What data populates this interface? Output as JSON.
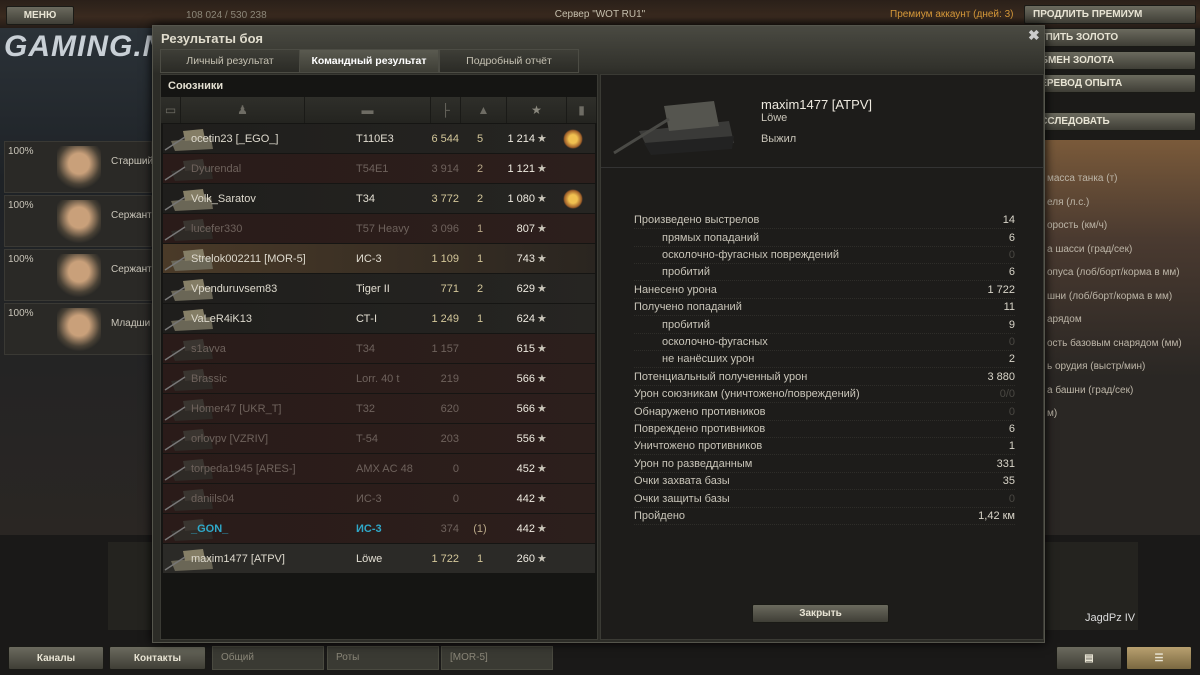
{
  "topbar": {
    "menu_label": "МЕНЮ",
    "gold_xp": "108 024 / 530 238",
    "server": "Сервер \"WOT RU1\"",
    "premium": "Премиум аккаунт (дней:  3)",
    "extend_premium": "ПРОДЛИТЬ ПРЕМИУМ",
    "buy_gold": "КУПИТЬ ЗОЛОТО",
    "exchange_gold": "ОБМЕН ЗОЛОТА",
    "transfer_xp": "ПЕРЕВОД ОПЫТА",
    "research": "ИССЛЕДОВАТЬ"
  },
  "background": {
    "logo": "GAMING.N",
    "crew": [
      {
        "pct": "100%",
        "rank": "Старший"
      },
      {
        "pct": "100%",
        "rank": "Сержант"
      },
      {
        "pct": "100%",
        "rank": "Сержант"
      },
      {
        "pct": "100%",
        "rank": "Младши"
      }
    ],
    "specs": [
      "масса танка (т)",
      "еля (л.с.)",
      "орость (км/ч)",
      "а шасси (град/сек)",
      "опуса (лоб/борт/корма в мм)",
      "шни (лоб/борт/корма в мм)",
      "арядом",
      "ость базовым снарядом (мм)",
      "ь орудия (выстр/мин)",
      "а башни (град/сек)",
      "м)"
    ],
    "carousel_tank": "JagdPz IV"
  },
  "bottombar": {
    "channels": "Каналы",
    "contacts": "Контакты",
    "chat_tabs": [
      "Общий",
      "Роты",
      "[MOR-5]"
    ]
  },
  "dialog": {
    "title": "Результаты боя",
    "tabs": [
      "Личный результат",
      "Командный результат",
      "Подробный отчёт"
    ],
    "active_tab": 1,
    "allies_label": "Союзники",
    "rows": [
      {
        "name": "ocetin23 [_EGO_]",
        "tank": "T110E3",
        "damage": "6 544",
        "kills": "5",
        "xp": "1 214",
        "status": "alive",
        "medal": true
      },
      {
        "name": "Dyurendal",
        "tank": "T54E1",
        "damage": "3 914",
        "kills": "2",
        "xp": "1 121",
        "status": "dead"
      },
      {
        "name": "Volk_Saratov",
        "tank": "T34",
        "damage": "3 772",
        "kills": "2",
        "xp": "1 080",
        "status": "alive",
        "medal": true
      },
      {
        "name": "lucefer330",
        "tank": "T57 Heavy",
        "damage": "3 096",
        "kills": "1",
        "xp": "807",
        "status": "dead"
      },
      {
        "name": "Strelok002211 [MOR-5]",
        "tank": "ИС-3",
        "damage": "1 109",
        "kills": "1",
        "xp": "743",
        "status": "squad"
      },
      {
        "name": "Vpenduruvsem83",
        "tank": "Tiger II",
        "damage": "771",
        "kills": "2",
        "xp": "629",
        "status": "alive"
      },
      {
        "name": "VaLeR4iK13",
        "tank": "СТ-I",
        "damage": "1 249",
        "kills": "1",
        "xp": "624",
        "status": "alive"
      },
      {
        "name": "s1avva",
        "tank": "T34",
        "damage": "1 157",
        "kills": "",
        "xp": "615",
        "status": "dead"
      },
      {
        "name": "Brassic",
        "tank": "Lorr. 40 t",
        "damage": "219",
        "kills": "",
        "xp": "566",
        "status": "dead"
      },
      {
        "name": "Homer47 [UKR_T]",
        "tank": "T32",
        "damage": "620",
        "kills": "",
        "xp": "566",
        "status": "dead"
      },
      {
        "name": "orlovpv [VZRIV]",
        "tank": "T-54",
        "damage": "203",
        "kills": "",
        "xp": "556",
        "status": "dead"
      },
      {
        "name": "torpeda1945 [ARES-]",
        "tank": "AMX AC 48",
        "damage": "0",
        "kills": "",
        "xp": "452",
        "status": "dead"
      },
      {
        "name": "daniils04",
        "tank": "ИС-3",
        "damage": "0",
        "kills": "",
        "xp": "442",
        "status": "dead"
      },
      {
        "name": "_GON_",
        "tank": "ИС-3",
        "damage": "374",
        "kills": "(1)",
        "xp": "442",
        "status": "dead",
        "highlight": "#2fa8c8"
      },
      {
        "name": "maxim1477 [ATPV]",
        "tank": "Löwe",
        "damage": "1 722",
        "kills": "1",
        "xp": "260",
        "status": "me"
      }
    ],
    "player": {
      "name": "maxim1477 [ATPV]",
      "tank": "Löwe",
      "status": "Выжил"
    },
    "stats": [
      {
        "label": "Произведено выстрелов",
        "value": "14"
      },
      {
        "label": "прямых попаданий",
        "value": "6",
        "indent": true
      },
      {
        "label": "осколочно-фугасных повреждений",
        "value": "0",
        "indent": true
      },
      {
        "label": "пробитий",
        "value": "6",
        "indent": true
      },
      {
        "label": "Нанесено урона",
        "value": "1 722"
      },
      {
        "label": "Получено попаданий",
        "value": "11"
      },
      {
        "label": "пробитий",
        "value": "9",
        "indent": true
      },
      {
        "label": "осколочно-фугасных",
        "value": "0",
        "indent": true
      },
      {
        "label": "не нанёсших урон",
        "value": "2",
        "indent": true
      },
      {
        "label": "Потенциальный полученный урон",
        "value": "3 880"
      },
      {
        "label": "Урон союзникам (уничтожено/повреждений)",
        "value": "0/0"
      },
      {
        "label": "Обнаружено противников",
        "value": "0"
      },
      {
        "label": "Повреждено противников",
        "value": "6"
      },
      {
        "label": "Уничтожено противников",
        "value": "1"
      },
      {
        "label": "Урон по разведданным",
        "value": "331"
      },
      {
        "label": "Очки захвата базы",
        "value": "35"
      },
      {
        "label": "Очки защиты базы",
        "value": "0"
      },
      {
        "label": "Пройдено",
        "value": "1,42 км"
      }
    ],
    "close_label": "Закрыть"
  }
}
